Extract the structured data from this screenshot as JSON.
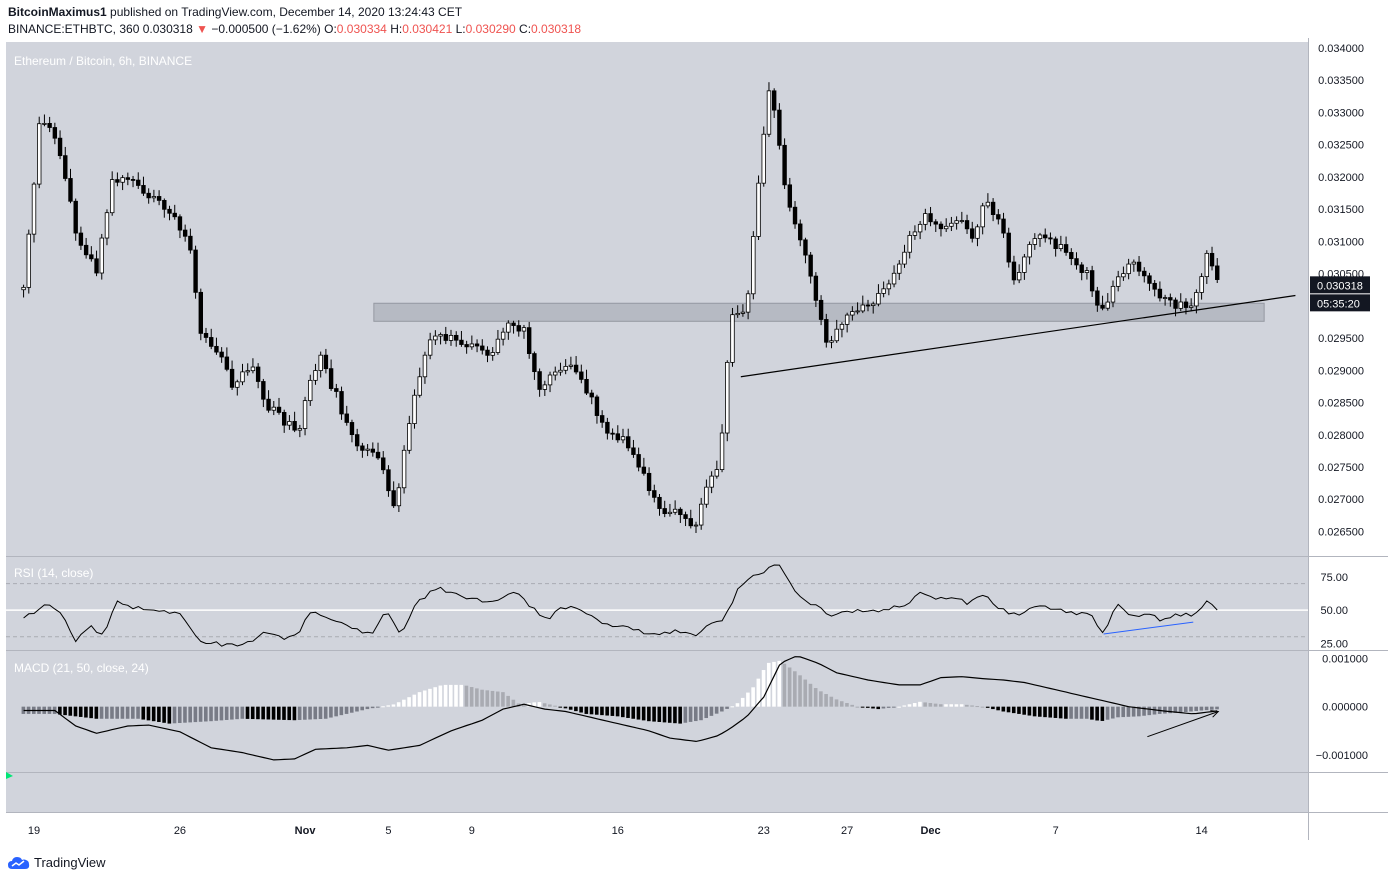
{
  "header": {
    "author": "BitcoinMaximus1",
    "published_text": "published on TradingView.com, December 14, 2020 13:24:43 CET",
    "symbol": "BINANCE:ETHBTC, 360",
    "last": "0.030318",
    "arrow": "▼",
    "change": "−0.000500 (−1.62%)",
    "o_label": "O:",
    "o_value": "0.030334",
    "h_label": "H:",
    "h_value": "0.030421",
    "l_label": "L:",
    "l_value": "0.030290",
    "c_label": "C:",
    "c_value": "0.030318"
  },
  "footer": {
    "brand": "TradingView"
  },
  "colors": {
    "background": "#d1d4dc",
    "candle": "#000000",
    "candle_up_fill": "#ffffff",
    "trendline": "#000000",
    "zone": "#b2b5be",
    "rsi_line": "#000000",
    "rsi_div": "#2962ff",
    "macd_hist_neg": "#000000",
    "macd_hist_neg_weak": "#787b86",
    "macd_hist_pos": "#ffffff",
    "macd_hist_pos_weak": "#a9abb2"
  },
  "chart_data": {
    "type": "candlestick",
    "title": "Ethereum / Bitcoin, 6h, BINANCE",
    "price_unit": "BTC",
    "last_price_label": "0.030318",
    "countdown_label": "05:35:20",
    "y_ticks": [
      "0.034000",
      "0.033500",
      "0.033000",
      "0.032500",
      "0.032000",
      "0.031500",
      "0.031000",
      "0.030500",
      "0.030000",
      "0.029500",
      "0.029000",
      "0.028500",
      "0.028000",
      "0.027500",
      "0.027000",
      "0.026500"
    ],
    "ylim": [
      0.02615,
      0.034
    ],
    "x_ticks": [
      {
        "label": "19",
        "day": 0
      },
      {
        "label": "26",
        "day": 7
      },
      {
        "label": "Nov",
        "day": 13
      },
      {
        "label": "5",
        "day": 17
      },
      {
        "label": "9",
        "day": 21
      },
      {
        "label": "16",
        "day": 28
      },
      {
        "label": "23",
        "day": 35
      },
      {
        "label": "27",
        "day": 39
      },
      {
        "label": "Dec",
        "day": 43
      },
      {
        "label": "7",
        "day": 49
      },
      {
        "label": "14",
        "day": 56
      }
    ],
    "close_anchors": [
      [
        -0.5,
        0.03025
      ],
      [
        0.3,
        0.033
      ],
      [
        1.2,
        0.0324
      ],
      [
        2,
        0.0312
      ],
      [
        2.5,
        0.0308
      ],
      [
        3,
        0.0305
      ],
      [
        3.7,
        0.0319
      ],
      [
        4.5,
        0.032
      ],
      [
        5.5,
        0.03175
      ],
      [
        6.8,
        0.0314
      ],
      [
        7.5,
        0.0308
      ],
      [
        8,
        0.0296
      ],
      [
        9,
        0.0292
      ],
      [
        9.5,
        0.0288
      ],
      [
        10.5,
        0.029
      ],
      [
        11,
        0.0285
      ],
      [
        12,
        0.0282
      ],
      [
        12.8,
        0.0281
      ],
      [
        13.2,
        0.0288
      ],
      [
        13.7,
        0.0292
      ],
      [
        14.5,
        0.0286
      ],
      [
        15.5,
        0.0278
      ],
      [
        16.6,
        0.0276
      ],
      [
        17.3,
        0.0268
      ],
      [
        17.7,
        0.0276
      ],
      [
        18.3,
        0.0287
      ],
      [
        19,
        0.0295
      ],
      [
        20,
        0.0295
      ],
      [
        21,
        0.0294
      ],
      [
        22,
        0.02925
      ],
      [
        22.8,
        0.02975
      ],
      [
        23.5,
        0.0296
      ],
      [
        24.3,
        0.0287
      ],
      [
        25,
        0.029
      ],
      [
        25.8,
        0.0291
      ],
      [
        26.6,
        0.0286
      ],
      [
        27.5,
        0.0281
      ],
      [
        28.3,
        0.0279
      ],
      [
        29.2,
        0.0274
      ],
      [
        30.1,
        0.0267
      ],
      [
        30.8,
        0.0268
      ],
      [
        31.6,
        0.0265
      ],
      [
        32.3,
        0.0273
      ],
      [
        32.9,
        0.0276
      ],
      [
        33.4,
        0.0298
      ],
      [
        34.2,
        0.03
      ],
      [
        34.8,
        0.032
      ],
      [
        35.2,
        0.0333
      ],
      [
        35.6,
        0.033
      ],
      [
        36,
        0.0318
      ],
      [
        36.6,
        0.0312
      ],
      [
        37.6,
        0.03
      ],
      [
        38.1,
        0.0293
      ],
      [
        38.5,
        0.0296
      ],
      [
        39.2,
        0.0299
      ],
      [
        40.1,
        0.03
      ],
      [
        41.1,
        0.0303
      ],
      [
        42,
        0.0311
      ],
      [
        42.8,
        0.0314
      ],
      [
        43.6,
        0.0312
      ],
      [
        44.4,
        0.0313
      ],
      [
        45,
        0.031
      ],
      [
        45.6,
        0.0317
      ],
      [
        46.4,
        0.0312
      ],
      [
        47,
        0.0304
      ],
      [
        48,
        0.0311
      ],
      [
        48.8,
        0.031
      ],
      [
        49.6,
        0.0308
      ],
      [
        50.5,
        0.0305
      ],
      [
        51.2,
        0.0299
      ],
      [
        51.8,
        0.0303
      ],
      [
        52.6,
        0.0307
      ],
      [
        53.3,
        0.0304
      ],
      [
        54.1,
        0.0301
      ],
      [
        54.8,
        0.03
      ],
      [
        55.6,
        0.03
      ],
      [
        56.3,
        0.0308
      ],
      [
        56.8,
        0.03032
      ]
    ],
    "resistance_zone": {
      "from_day": 16.3,
      "to_day": 59.0,
      "low": 0.02976,
      "high": 0.03004
    },
    "trendline": {
      "start": {
        "day": 33.9,
        "price": 0.0289
      },
      "end": {
        "day": 60.5,
        "price": 0.03016
      }
    },
    "rsi": {
      "label": "RSI (14, close)",
      "y_ticks": [
        "75.00",
        "50.00",
        "25.00"
      ],
      "ylim": [
        20,
        90
      ],
      "levels": [
        70,
        50,
        30
      ],
      "anchors": [
        [
          -0.5,
          43
        ],
        [
          0.5,
          55
        ],
        [
          1.3,
          47
        ],
        [
          2,
          27
        ],
        [
          2.7,
          38
        ],
        [
          3.3,
          30
        ],
        [
          4,
          57
        ],
        [
          4.8,
          52
        ],
        [
          5.8,
          50
        ],
        [
          7,
          47
        ],
        [
          8,
          27
        ],
        [
          9,
          24
        ],
        [
          10,
          23
        ],
        [
          11,
          32
        ],
        [
          12,
          29
        ],
        [
          12.6,
          31
        ],
        [
          13.3,
          50
        ],
        [
          14,
          45
        ],
        [
          15,
          40
        ],
        [
          15.6,
          34
        ],
        [
          16.3,
          33
        ],
        [
          16.9,
          50
        ],
        [
          17.6,
          30
        ],
        [
          18.3,
          55
        ],
        [
          19.3,
          67
        ],
        [
          20.5,
          60
        ],
        [
          21.5,
          57
        ],
        [
          22.3,
          58
        ],
        [
          23,
          64
        ],
        [
          23.8,
          53
        ],
        [
          24.6,
          42
        ],
        [
          25.2,
          51
        ],
        [
          26,
          53
        ],
        [
          26.8,
          44
        ],
        [
          27.6,
          38
        ],
        [
          28.3,
          37
        ],
        [
          29.1,
          34
        ],
        [
          30,
          32
        ],
        [
          30.9,
          35
        ],
        [
          31.7,
          31
        ],
        [
          32.4,
          40
        ],
        [
          33.1,
          43
        ],
        [
          33.8,
          67
        ],
        [
          34.6,
          76
        ],
        [
          35.3,
          82
        ],
        [
          35.8,
          85
        ],
        [
          36.6,
          60
        ],
        [
          37.7,
          52
        ],
        [
          38.2,
          44
        ],
        [
          38.7,
          47
        ],
        [
          39.7,
          50
        ],
        [
          40.7,
          49
        ],
        [
          41.7,
          54
        ],
        [
          42.5,
          62
        ],
        [
          43.3,
          58
        ],
        [
          44.1,
          60
        ],
        [
          44.8,
          55
        ],
        [
          45.6,
          61
        ],
        [
          46.3,
          52
        ],
        [
          47.1,
          46
        ],
        [
          48,
          54
        ],
        [
          48.9,
          51
        ],
        [
          49.8,
          48
        ],
        [
          50.7,
          46
        ],
        [
          51.3,
          33
        ],
        [
          51.9,
          55
        ],
        [
          52.7,
          45
        ],
        [
          53.4,
          47
        ],
        [
          54.2,
          42
        ],
        [
          54.9,
          47
        ],
        [
          55.6,
          46
        ],
        [
          56.3,
          57
        ],
        [
          56.9,
          46
        ]
      ],
      "divergence": {
        "start": {
          "day": 51.3,
          "value": 32
        },
        "end": {
          "day": 55.6,
          "value": 41
        }
      }
    },
    "macd": {
      "label": "MACD (21, 50, close, 24)",
      "y_ticks": [
        "0.001000",
        "0.000000",
        "−0.001000"
      ],
      "ylim": [
        -0.00135,
        0.00115
      ],
      "macd_anchors": [
        [
          -0.5,
          -8e-05
        ],
        [
          1,
          -8e-05
        ],
        [
          2,
          -0.0004
        ],
        [
          3,
          -0.00055
        ],
        [
          4.5,
          -0.0004
        ],
        [
          5.5,
          -0.00038
        ],
        [
          7,
          -0.00052
        ],
        [
          8.5,
          -0.00085
        ],
        [
          10,
          -0.00095
        ],
        [
          11.5,
          -0.0011
        ],
        [
          12.5,
          -0.00108
        ],
        [
          13.5,
          -0.00088
        ],
        [
          15,
          -0.00085
        ],
        [
          16,
          -0.0008
        ],
        [
          17,
          -0.0009
        ],
        [
          18.5,
          -0.0008
        ],
        [
          20,
          -0.0005
        ],
        [
          21.5,
          -0.00028
        ],
        [
          22.5,
          -5e-05
        ],
        [
          23.5,
          5e-05
        ],
        [
          24.5,
          -5e-05
        ],
        [
          25.5,
          -0.0001
        ],
        [
          26.5,
          -0.0002
        ],
        [
          28,
          -0.00035
        ],
        [
          29.5,
          -0.0005
        ],
        [
          30.5,
          -0.00065
        ],
        [
          31.8,
          -0.00072
        ],
        [
          32.8,
          -0.0006
        ],
        [
          33.4,
          -0.00045
        ],
        [
          34.2,
          -0.0002
        ],
        [
          35,
          0.0002
        ],
        [
          35.8,
          0.0009
        ],
        [
          36.6,
          0.00105
        ],
        [
          37.6,
          0.0009
        ],
        [
          38.5,
          0.0007
        ],
        [
          40,
          0.00055
        ],
        [
          41.5,
          0.00045
        ],
        [
          42.5,
          0.00045
        ],
        [
          43.5,
          0.0006
        ],
        [
          44.5,
          0.00062
        ],
        [
          45.5,
          0.00058
        ],
        [
          46.5,
          0.00055
        ],
        [
          47.5,
          0.0005
        ],
        [
          48.5,
          0.0004
        ],
        [
          50,
          0.00025
        ],
        [
          51,
          0.00015
        ],
        [
          52.5,
          0.0
        ],
        [
          54,
          -8e-05
        ],
        [
          55.6,
          -0.00015
        ],
        [
          56.9,
          -8e-05
        ]
      ],
      "histogram_anchors": [
        [
          -0.5,
          -0.00015
        ],
        [
          1,
          -0.00015
        ],
        [
          3,
          -0.00025
        ],
        [
          5,
          -0.00025
        ],
        [
          6.5,
          -0.00035
        ],
        [
          8.5,
          -0.0003
        ],
        [
          10,
          -0.00025
        ],
        [
          12.5,
          -0.00028
        ],
        [
          14,
          -0.00025
        ],
        [
          16,
          -5e-05
        ],
        [
          17.3,
          5e-05
        ],
        [
          18.5,
          0.0003
        ],
        [
          19.6,
          0.00045
        ],
        [
          20.6,
          0.00045
        ],
        [
          21.5,
          0.00035
        ],
        [
          22.5,
          0.0003
        ],
        [
          23.3,
          5e-05
        ],
        [
          24.2,
          0.0001
        ],
        [
          25.2,
          0.0
        ],
        [
          26.5,
          -0.00015
        ],
        [
          28,
          -0.0002
        ],
        [
          29.5,
          -0.0003
        ],
        [
          31,
          -0.00035
        ],
        [
          32,
          -0.00028
        ],
        [
          33,
          -0.0001
        ],
        [
          33.7,
          5e-05
        ],
        [
          34.5,
          0.0004
        ],
        [
          35.2,
          0.0009
        ],
        [
          35.8,
          0.00095
        ],
        [
          36.6,
          0.0007
        ],
        [
          37.6,
          0.00035
        ],
        [
          38.5,
          0.00015
        ],
        [
          39.5,
          0.0
        ],
        [
          40.5,
          -5e-05
        ],
        [
          41.5,
          0.0
        ],
        [
          42.5,
          0.0001
        ],
        [
          43.5,
          5e-05
        ],
        [
          44.5,
          5e-05
        ],
        [
          45.5,
          0.0
        ],
        [
          46.5,
          -0.0001
        ],
        [
          48,
          -0.0002
        ],
        [
          49.5,
          -0.00025
        ],
        [
          50.5,
          -0.00025
        ],
        [
          51.2,
          -0.0003
        ],
        [
          52,
          -0.00022
        ],
        [
          53,
          -0.0002
        ],
        [
          54,
          -0.00015
        ],
        [
          55,
          -0.00012
        ],
        [
          56,
          -8e-05
        ],
        [
          56.9,
          -5e-05
        ]
      ],
      "arrow": {
        "start": {
          "day": 53.4,
          "value": -0.00062
        },
        "end": {
          "day": 56.8,
          "value": -0.0001
        }
      }
    }
  }
}
